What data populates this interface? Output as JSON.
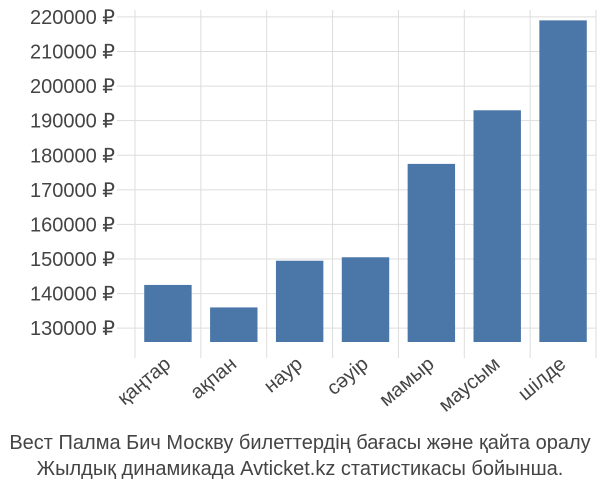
{
  "chart_data": {
    "type": "bar",
    "categories": [
      "қаңтар",
      "ақпан",
      "наур",
      "сәуір",
      "мамыр",
      "маусым",
      "шілде"
    ],
    "values": [
      142500,
      136000,
      149500,
      150500,
      177500,
      193000,
      219000
    ],
    "ylim": [
      126000,
      222000
    ],
    "yticks": [
      130000,
      140000,
      150000,
      160000,
      170000,
      180000,
      190000,
      200000,
      210000,
      220000
    ],
    "ytick_suffix": " ₽",
    "grid": true,
    "bar_color": "#4a76a8"
  },
  "caption": {
    "line1": "Вест Палма Бич Москву билеттердің бағасы және қайта оралу",
    "line2": "Жылдық динамикада Avticket.kz статистикасы бойынша."
  }
}
